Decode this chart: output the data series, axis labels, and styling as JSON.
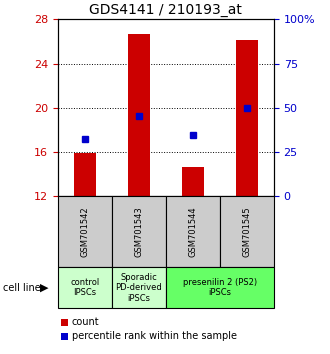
{
  "title": "GDS4141 / 210193_at",
  "samples": [
    "GSM701542",
    "GSM701543",
    "GSM701544",
    "GSM701545"
  ],
  "bar_values": [
    15.9,
    26.7,
    14.7,
    26.1
  ],
  "bar_base": 12.0,
  "percentile_values": [
    17.2,
    19.3,
    17.6,
    20.0
  ],
  "ylim_left": [
    12,
    28
  ],
  "ylim_right": [
    0,
    100
  ],
  "yticks_left": [
    12,
    16,
    20,
    24,
    28
  ],
  "yticks_right": [
    0,
    25,
    50,
    75,
    100
  ],
  "ytick_labels_right": [
    "0",
    "25",
    "50",
    "75",
    "100%"
  ],
  "bar_color": "#cc0000",
  "percentile_color": "#0000cc",
  "bar_width": 0.4,
  "group_spans": [
    {
      "cols": [
        0
      ],
      "label": "control\nIPSCs",
      "color": "#ccffcc"
    },
    {
      "cols": [
        1
      ],
      "label": "Sporadic\nPD-derived\niPSCs",
      "color": "#ccffcc"
    },
    {
      "cols": [
        2,
        3
      ],
      "label": "presenilin 2 (PS2)\niPSCs",
      "color": "#66ff66"
    }
  ],
  "sample_box_color": "#cccccc",
  "cell_line_label": "cell line",
  "legend_count_label": "count",
  "legend_percentile_label": "percentile rank within the sample",
  "tick_label_color_left": "#cc0000",
  "tick_label_color_right": "#0000cc",
  "title_fontsize": 10,
  "tick_fontsize": 8,
  "sample_fontsize": 6,
  "group_fontsize": 6,
  "legend_fontsize": 7
}
